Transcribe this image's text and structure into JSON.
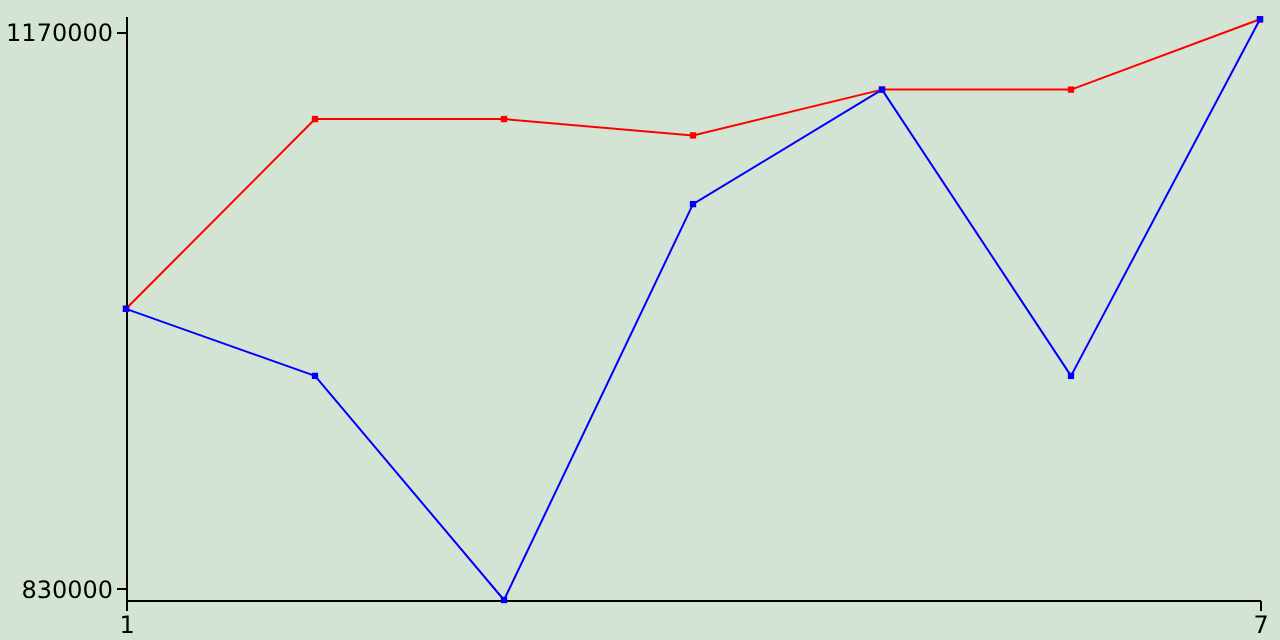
{
  "chart_data": {
    "type": "line",
    "x": [
      1,
      2,
      3,
      4,
      5,
      6,
      7
    ],
    "series": [
      {
        "color": "#ff0000",
        "values": [
          1001000,
          1117000,
          1117000,
          1107000,
          1135000,
          1135000,
          1178000
        ]
      },
      {
        "color": "#0000ff",
        "values": [
          1001000,
          960000,
          823000,
          1065000,
          1135000,
          960000,
          1178000
        ]
      }
    ],
    "xlim": [
      1,
      7
    ],
    "xticks": [
      1,
      7
    ],
    "ylim": [
      823000,
      1180000
    ],
    "yticks": [
      830000,
      1170000
    ],
    "marker": "square",
    "line_style": "solid"
  }
}
